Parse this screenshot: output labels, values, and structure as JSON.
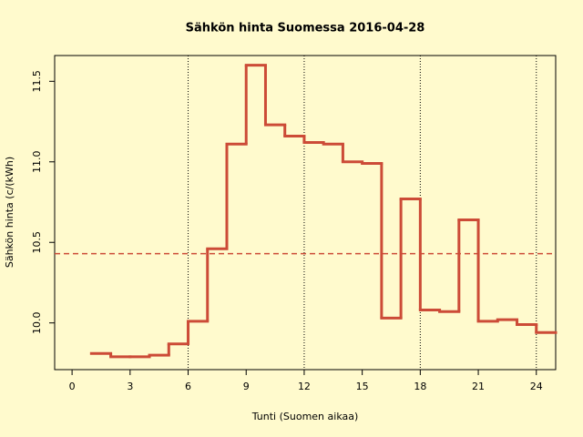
{
  "chart_data": {
    "type": "step",
    "title": "Sähkön hinta Suomessa 2016-04-28",
    "xlabel": "Tunti (Suomen aikaa)",
    "ylabel": "Sähkön hinta (c/(kWh)",
    "x": [
      1,
      2,
      3,
      4,
      5,
      6,
      7,
      8,
      9,
      10,
      11,
      12,
      13,
      14,
      15,
      16,
      17,
      18,
      19,
      20,
      21,
      22,
      23,
      24
    ],
    "values": [
      9.81,
      9.79,
      9.79,
      9.8,
      9.87,
      10.01,
      10.46,
      11.11,
      11.6,
      11.23,
      11.16,
      11.12,
      11.11,
      11.0,
      10.99,
      10.03,
      10.77,
      10.08,
      10.07,
      10.64,
      10.01,
      10.02,
      9.99,
      9.94
    ],
    "color": "#cc4b37",
    "xlim": [
      -0.9,
      25
    ],
    "ylim": [
      9.71,
      11.66
    ],
    "xticks": [
      0,
      3,
      6,
      9,
      12,
      15,
      18,
      21,
      24
    ],
    "yticks": [
      {
        "value": 10,
        "label": "10.0"
      },
      {
        "value": 10.5,
        "label": "10.5"
      },
      {
        "value": 11,
        "label": "11.0"
      },
      {
        "value": 11.5,
        "label": "11.5"
      }
    ],
    "reference_line": 10.43,
    "reference_color": "#cc4b37",
    "vlines": [
      6,
      12,
      18,
      24
    ]
  }
}
